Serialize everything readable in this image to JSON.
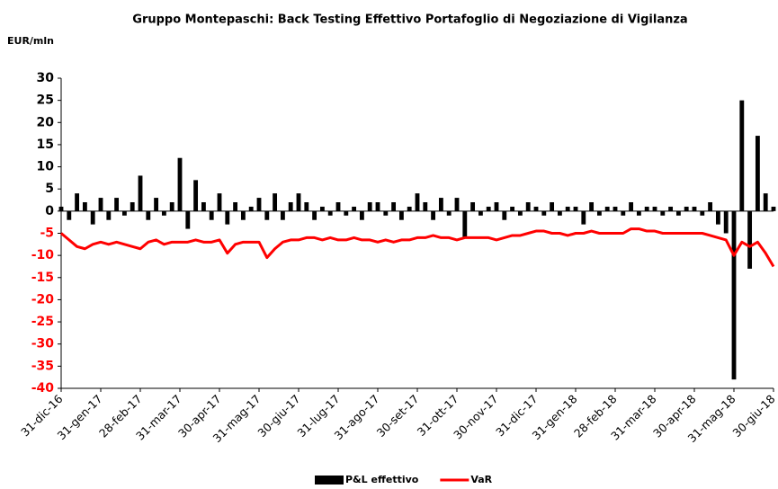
{
  "chart_data": {
    "type": "bar_line",
    "title": "Gruppo Montepaschi: Back Testing Effettivo Portafoglio di Negoziazione di  Vigilanza",
    "y_label": "EUR/mln",
    "categories": [
      "31-dic-16",
      null,
      null,
      null,
      null,
      "31-gen-17",
      null,
      null,
      null,
      null,
      "28-feb-17",
      null,
      null,
      null,
      null,
      "31-mar-17",
      null,
      null,
      null,
      null,
      "30-apr-17",
      null,
      null,
      null,
      null,
      "31-mag-17",
      null,
      null,
      null,
      null,
      "30-giu-17",
      null,
      null,
      null,
      null,
      "31-lug-17",
      null,
      null,
      null,
      null,
      "31-ago-17",
      null,
      null,
      null,
      null,
      "30-set-17",
      null,
      null,
      null,
      null,
      "31-ott-17",
      null,
      null,
      null,
      null,
      "30-nov-17",
      null,
      null,
      null,
      null,
      "31-dic-17",
      null,
      null,
      null,
      null,
      "31-gen-18",
      null,
      null,
      null,
      null,
      "28-feb-18",
      null,
      null,
      null,
      null,
      "31-mar-18",
      null,
      null,
      null,
      null,
      "30-apr-18",
      null,
      null,
      null,
      null,
      "31-mag-18",
      null,
      null,
      null,
      null,
      "30-giu-18"
    ],
    "series": [
      {
        "name": "P&L  effettivo",
        "kind": "bar",
        "color": "#000000",
        "values": [
          1,
          -2,
          4,
          2,
          -3,
          3,
          -2,
          3,
          -1,
          2,
          8,
          -2,
          3,
          -1,
          2,
          12,
          -4,
          7,
          2,
          -2,
          4,
          -3,
          2,
          -2,
          1,
          3,
          -2,
          4,
          -2,
          2,
          4,
          2,
          -2,
          1,
          -1,
          2,
          -1,
          1,
          -2,
          2,
          2,
          -1,
          2,
          -2,
          1,
          4,
          2,
          -2,
          3,
          -1,
          3,
          -6,
          2,
          -1,
          1,
          2,
          -2,
          1,
          -1,
          2,
          1,
          -1,
          2,
          -1,
          1,
          1,
          -3,
          2,
          -1,
          1,
          1,
          -1,
          2,
          -1,
          1,
          1,
          -1,
          1,
          -1,
          1,
          1,
          -1,
          2,
          -3,
          -5,
          -38,
          25,
          -13,
          17,
          4,
          1
        ]
      },
      {
        "name": "VaR",
        "kind": "line",
        "color": "#ff0000",
        "values": [
          -5,
          -6.5,
          -8,
          -8.5,
          -7.5,
          -7,
          -7.5,
          -7,
          -7.5,
          -8,
          -8.5,
          -7,
          -6.5,
          -7.5,
          -7,
          -7,
          -7,
          -6.5,
          -7,
          -7,
          -6.5,
          -9.5,
          -7.5,
          -7,
          -7,
          -7,
          -10.5,
          -8.5,
          -7,
          -6.5,
          -6.5,
          -6,
          -6,
          -6.5,
          -6,
          -6.5,
          -6.5,
          -6,
          -6.5,
          -6.5,
          -7,
          -6.5,
          -7,
          -6.5,
          -6.5,
          -6,
          -6,
          -5.5,
          -6,
          -6,
          -6.5,
          -6,
          -6,
          -6,
          -6,
          -6.5,
          -6,
          -5.5,
          -5.5,
          -5,
          -4.5,
          -4.5,
          -5,
          -5,
          -5.5,
          -5,
          -5,
          -4.5,
          -5,
          -5,
          -5,
          -5,
          -4,
          -4,
          -4.5,
          -4.5,
          -5,
          -5,
          -5,
          -5,
          -5,
          -5,
          -5.5,
          -6,
          -6.5,
          -10,
          -7,
          -8,
          -7,
          -9.5,
          -12.5
        ]
      }
    ],
    "ylim": [
      -40,
      30
    ],
    "yticks": [
      -40,
      -35,
      -30,
      -25,
      -20,
      -15,
      -10,
      -5,
      0,
      5,
      10,
      15,
      20,
      25,
      30
    ],
    "negative_tick_color": "#ff0000",
    "positive_tick_color": "#000000",
    "legend": "bottom"
  }
}
